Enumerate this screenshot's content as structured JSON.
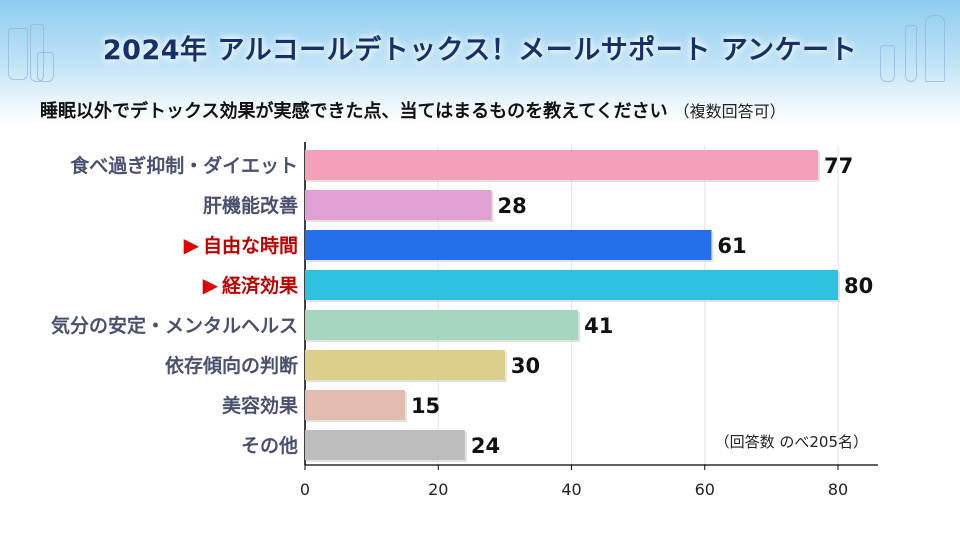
{
  "header": {
    "title": "2024年 アルコールデトックス！メールサポート アンケート",
    "subtitle": "睡眠以外でデトックス効果が実感できた点、当てはまるものを教えてください",
    "subtitle_note": "（複数回答可）"
  },
  "chart_data": {
    "type": "bar",
    "orientation": "horizontal",
    "categories": [
      "食べ過ぎ抑制・ダイエット",
      "肝機能改善",
      "自由な時間",
      "経済効果",
      "気分の安定・メンタルヘルス",
      "依存傾向の判断",
      "美容効果",
      "その他"
    ],
    "values": [
      77,
      28,
      61,
      80,
      41,
      30,
      15,
      24
    ],
    "colors": [
      "#f4a0b8",
      "#e0a0d4",
      "#2370ea",
      "#2fc2e0",
      "#a6d6bf",
      "#dccf8c",
      "#e2bcaf",
      "#bdbdbd"
    ],
    "highlighted": [
      false,
      false,
      true,
      true,
      false,
      false,
      false,
      false
    ],
    "highlight_color": "#c00000",
    "label_color": "#4a5070",
    "marker": "▶",
    "xlim": [
      0,
      86
    ],
    "xticks": [
      0,
      20,
      40,
      60,
      80
    ],
    "annotation": "（回答数 のべ205名）",
    "grid": true
  }
}
